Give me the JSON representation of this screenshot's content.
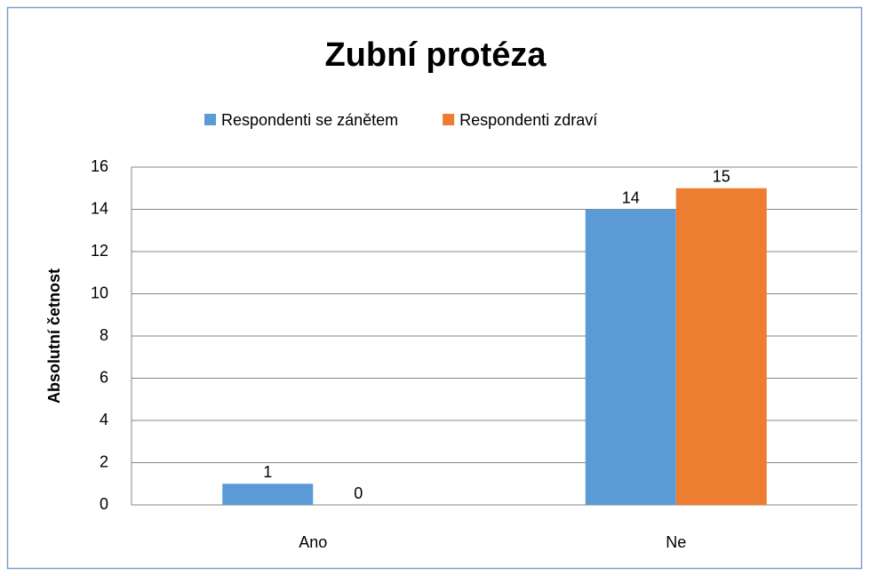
{
  "chart_data": {
    "type": "bar",
    "title": "Zubní protéza",
    "y_label": "Absolutní četnost",
    "categories": [
      "Ano",
      "Ne"
    ],
    "series": [
      {
        "name": "Respondenti se zánětem",
        "color": "#5b9bd5",
        "values": [
          1,
          14
        ]
      },
      {
        "name": "Respondenti zdraví",
        "color": "#ed7d31",
        "values": [
          0,
          15
        ]
      }
    ],
    "ylim": [
      0,
      16
    ],
    "yticks": [
      0,
      2,
      4,
      6,
      8,
      10,
      12,
      14,
      16
    ],
    "grid": true,
    "legend": "top"
  }
}
